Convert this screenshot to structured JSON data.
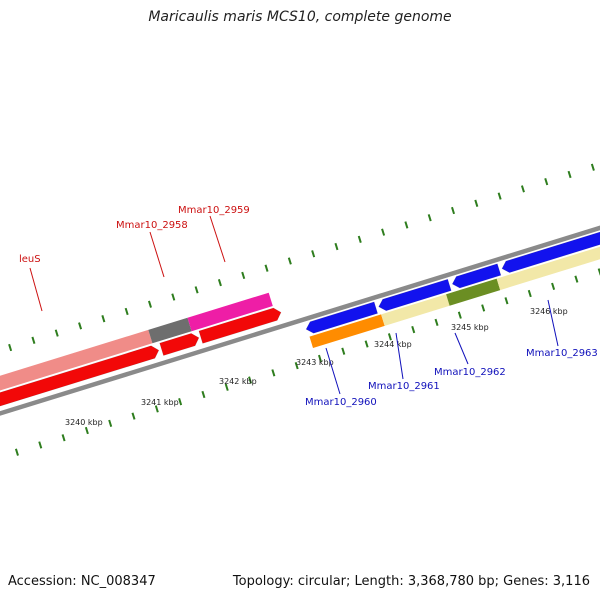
{
  "title": "Maricaulis maris MCS10, complete genome",
  "footer": {
    "accession": "Accession: NC_008347",
    "topology": "Topology: circular; Length: 3,368,780 bp; Genes: 3,116"
  },
  "colors": {
    "backbone": "#8a8a8a",
    "tick": "#2e7d1e",
    "label_red": "#cc1111",
    "label_blue": "#1111bb",
    "salmon": "#f08c88",
    "grey_gene": "#6e6e6e",
    "magenta": "#ee1ea6",
    "red": "#f20808",
    "blue": "#1212ee",
    "pale_yellow": "#f2e8a8",
    "orange": "#ff8c00",
    "olive": "#6b8e23"
  },
  "scale_labels": [
    {
      "text": "3240 kbp",
      "kbp": 3240
    },
    {
      "text": "3241 kbp",
      "kbp": 3241
    },
    {
      "text": "3242 kbp",
      "kbp": 3242
    },
    {
      "text": "3243 kbp",
      "kbp": 3243
    },
    {
      "text": "3244 kbp",
      "kbp": 3244
    },
    {
      "text": "3245 kbp",
      "kbp": 3245
    },
    {
      "text": "3246 kbp",
      "kbp": 3246
    }
  ],
  "genes": [
    {
      "name": "leuS",
      "color": "red",
      "label_color": "label_red"
    },
    {
      "name": "Mmar10_2958",
      "color": "grey_gene",
      "label_color": "label_red"
    },
    {
      "name": "Mmar10_2959",
      "color": "magenta",
      "label_color": "label_red"
    },
    {
      "name": "Mmar10_2960",
      "color": "orange",
      "label_color": "label_blue"
    },
    {
      "name": "Mmar10_2961",
      "color": "pale_yellow",
      "label_color": "label_blue"
    },
    {
      "name": "Mmar10_2962",
      "color": "olive",
      "label_color": "label_blue"
    },
    {
      "name": "Mmar10_2963",
      "color": "pale_yellow",
      "label_color": "label_blue"
    }
  ]
}
